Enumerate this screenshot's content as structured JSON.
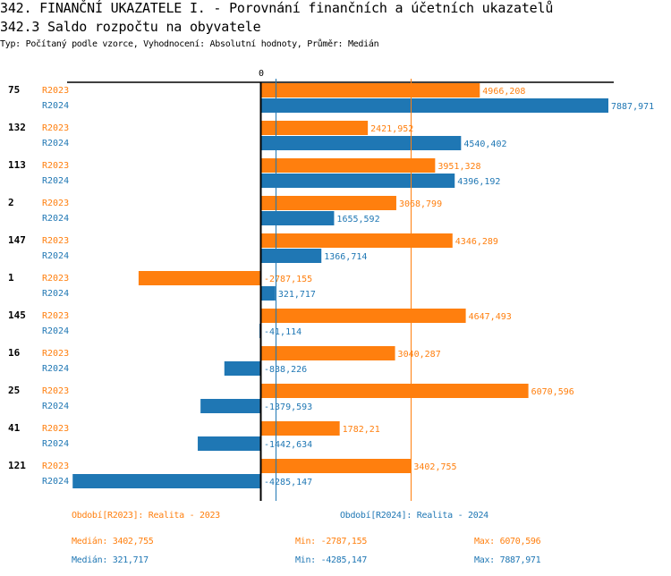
{
  "header": {
    "title": "342. FINANČNÍ UKAZATELE I. - Porovnání finančních a účetních ukazatelů",
    "subtitle": "342.3 Saldo rozpočtu na obyvatele",
    "info": "Typ: Počítaný podle vzorce, Vyhodnocení: Absolutní hodnoty, Průměr: Medián"
  },
  "colors": {
    "R2023": "#ff7f0e",
    "R2024": "#1f77b4",
    "axis": "#000000"
  },
  "chart_data": {
    "type": "bar",
    "orientation": "horizontal",
    "title": "342.3 Saldo rozpočtu na obyvatele",
    "zero_label": "0",
    "categories": [
      "75",
      "132",
      "113",
      "2",
      "147",
      "1",
      "145",
      "16",
      "25",
      "41",
      "121"
    ],
    "series": [
      {
        "name": "R2023",
        "values": [
          4966.208,
          2421.952,
          3951.328,
          3068.799,
          4346.289,
          -2787.155,
          4647.493,
          3040.287,
          6070.596,
          1782.21,
          3402.755
        ],
        "labels": [
          "4966,208",
          "2421,952",
          "3951,328",
          "3068,799",
          "4346,289",
          "-2787,155",
          "4647,493",
          "3040,287",
          "6070,596",
          "1782,21",
          "3402,755"
        ],
        "median": 3402.755
      },
      {
        "name": "R2024",
        "values": [
          7887.971,
          4540.402,
          4396.192,
          1655.592,
          1366.714,
          321.717,
          -41.114,
          -838.226,
          -1379.593,
          -1442.634,
          -4285.147
        ],
        "labels": [
          "7887,971",
          "4540,402",
          "4396,192",
          "1655,592",
          "1366,714",
          "321,717",
          "-41,114",
          "-838,226",
          "-1379,593",
          "-1442,634",
          "-4285,147"
        ],
        "median": 321.717
      }
    ],
    "xlim": [
      -4285.147,
      7887.971
    ],
    "median_lines": true,
    "grid": false
  },
  "legend": {
    "r2023_title": "Období[R2023]: Realita - 2023",
    "r2024_title": "Období[R2024]: Realita - 2024",
    "r2023_median": "Medián: 3402,755",
    "r2023_min": "Min: -2787,155",
    "r2023_max": "Max: 6070,596",
    "r2024_median": "Medián: 321,717",
    "r2024_min": "Min: -4285,147",
    "r2024_max": "Max: 7887,971"
  }
}
